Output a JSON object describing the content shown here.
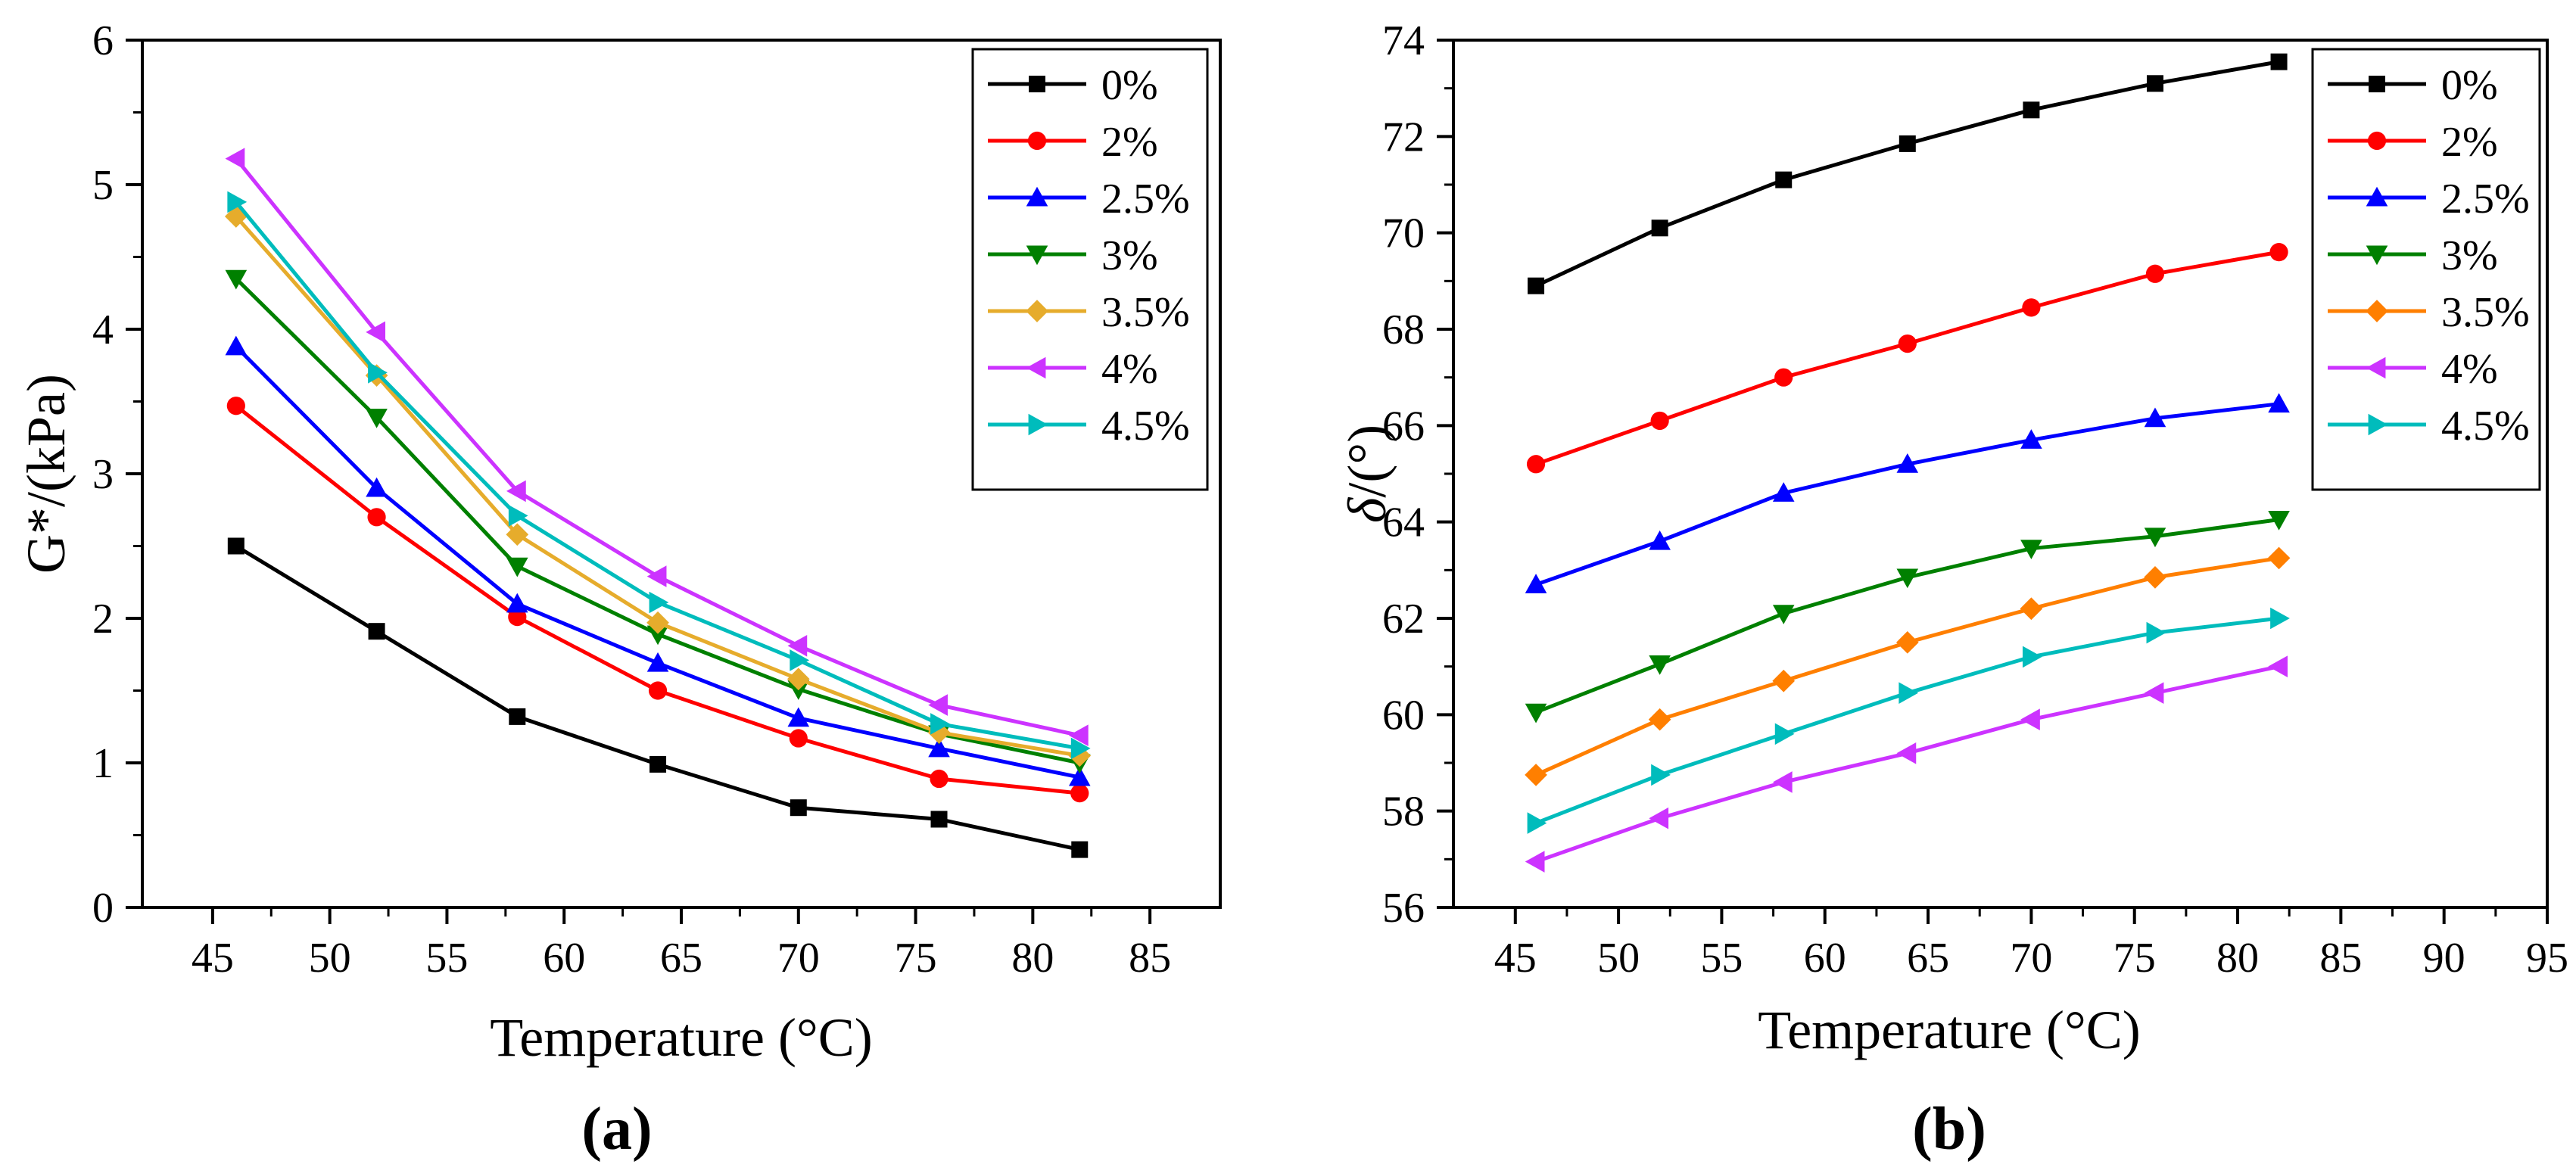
{
  "chart_data": [
    {
      "id": "a",
      "type": "line",
      "panel_label": "(a)",
      "title": "",
      "xlabel": "Temperature (°C)",
      "ylabel": "G*/(kPa)",
      "xlim": [
        42,
        88
      ],
      "ylim": [
        0,
        6
      ],
      "xticks": [
        45,
        50,
        55,
        60,
        65,
        70,
        75,
        80,
        85
      ],
      "yticks": [
        0,
        1,
        2,
        3,
        4,
        5,
        6
      ],
      "legend_position": "top-right",
      "grid": false,
      "x": [
        46,
        52,
        58,
        64,
        70,
        76,
        82
      ],
      "series": [
        {
          "name": "0%",
          "color": "#000000",
          "marker": "square",
          "values": [
            2.5,
            1.91,
            1.32,
            0.99,
            0.69,
            0.61,
            0.4
          ]
        },
        {
          "name": "2%",
          "color": "#ff0000",
          "marker": "circle",
          "values": [
            3.47,
            2.7,
            2.01,
            1.5,
            1.17,
            0.89,
            0.79
          ]
        },
        {
          "name": "2.5%",
          "color": "#0000ff",
          "marker": "triangle-up",
          "values": [
            3.88,
            2.9,
            2.1,
            1.69,
            1.31,
            1.1,
            0.9
          ]
        },
        {
          "name": "3%",
          "color": "#008000",
          "marker": "triangle-down",
          "values": [
            4.35,
            3.39,
            2.36,
            1.89,
            1.51,
            1.2,
            1.0
          ]
        },
        {
          "name": "3.5%",
          "color": "#e6ac2c",
          "marker": "diamond",
          "values": [
            4.78,
            3.68,
            2.58,
            1.97,
            1.58,
            1.21,
            1.05
          ]
        },
        {
          "name": "4%",
          "color": "#cc33ff",
          "marker": "triangle-left",
          "values": [
            5.18,
            3.98,
            2.88,
            2.29,
            1.81,
            1.4,
            1.19
          ]
        },
        {
          "name": "4.5%",
          "color": "#00bcbc",
          "marker": "triangle-right",
          "values": [
            4.88,
            3.7,
            2.71,
            2.11,
            1.71,
            1.27,
            1.1
          ]
        }
      ]
    },
    {
      "id": "b",
      "type": "line",
      "panel_label": "(b)",
      "title": "",
      "xlabel": "Temperature (°C)",
      "ylabel_symbol": "δ",
      "ylabel_unit": "/(°)",
      "xlim": [
        42,
        95
      ],
      "ylim": [
        56,
        74
      ],
      "xticks": [
        45,
        50,
        55,
        60,
        65,
        70,
        75,
        80,
        85,
        90,
        95
      ],
      "yticks": [
        56,
        58,
        60,
        62,
        64,
        66,
        68,
        70,
        72,
        74
      ],
      "legend_position": "top-right",
      "grid": false,
      "x": [
        46,
        52,
        58,
        64,
        70,
        76,
        82
      ],
      "series": [
        {
          "name": "0%",
          "color": "#000000",
          "marker": "square",
          "values": [
            68.9,
            70.1,
            71.1,
            71.85,
            72.55,
            73.1,
            73.55
          ]
        },
        {
          "name": "2%",
          "color": "#ff0000",
          "marker": "circle",
          "values": [
            65.2,
            66.1,
            67.0,
            67.7,
            68.45,
            69.15,
            69.6
          ]
        },
        {
          "name": "2.5%",
          "color": "#0000ff",
          "marker": "triangle-up",
          "values": [
            62.7,
            63.6,
            64.6,
            65.2,
            65.7,
            66.15,
            66.45
          ]
        },
        {
          "name": "3%",
          "color": "#008000",
          "marker": "triangle-down",
          "values": [
            60.05,
            61.05,
            62.1,
            62.85,
            63.45,
            63.7,
            64.05
          ]
        },
        {
          "name": "3.5%",
          "color": "#ff7f00",
          "marker": "diamond",
          "values": [
            58.75,
            59.9,
            60.7,
            61.5,
            62.2,
            62.85,
            63.25
          ]
        },
        {
          "name": "4%",
          "color": "#cc33ff",
          "marker": "triangle-left",
          "values": [
            56.95,
            57.85,
            58.6,
            59.2,
            59.9,
            60.45,
            61.0
          ]
        },
        {
          "name": "4.5%",
          "color": "#00bcbc",
          "marker": "triangle-right",
          "values": [
            57.75,
            58.75,
            59.6,
            60.45,
            61.2,
            61.7,
            62.0
          ]
        }
      ]
    }
  ]
}
